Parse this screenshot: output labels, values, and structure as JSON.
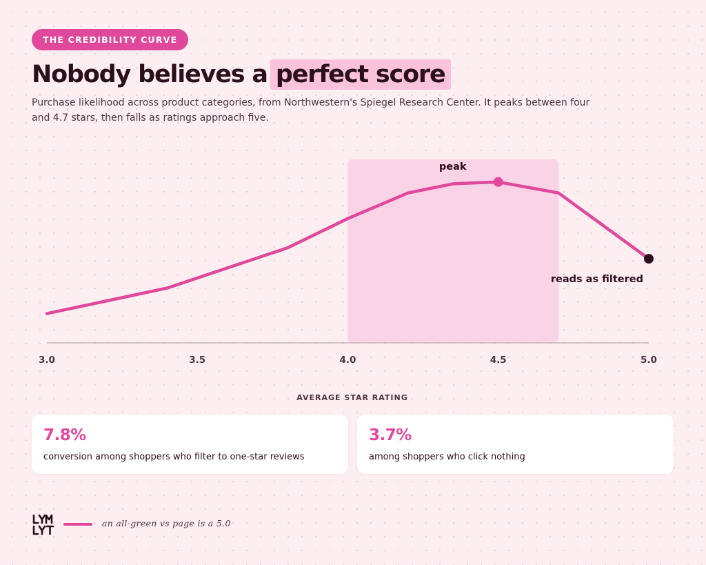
{
  "header": {
    "pill": "THE CREDIBILITY CURVE",
    "title_main": "Nobody believes a",
    "title_highlight": "perfect score",
    "subtitle": "Purchase likelihood across product categories, from Northwestern's Spiegel Research Center. It peaks between four and 4.7 stars, then falls as ratings approach five."
  },
  "colors": {
    "accent": "#e0489c",
    "band": "#fbd3e6",
    "axis": "#c7b3bc",
    "ink": "#2a0f1c",
    "end_point": "#2a0f1c"
  },
  "chart_data": {
    "type": "line",
    "title": "Nobody believes a perfect score",
    "xlabel": "AVERAGE STAR RATING",
    "ylabel": "",
    "xlim": [
      3.0,
      5.0
    ],
    "ylim": [
      0,
      100
    ],
    "x_ticks": [
      "3.0",
      "3.5",
      "4.0",
      "4.5",
      "5.0"
    ],
    "y_axis_visible": false,
    "grid": false,
    "series": [
      {
        "name": "",
        "x": [
          3.0,
          3.4,
          3.8,
          4.0,
          4.2,
          4.35,
          4.5,
          4.7,
          5.0
        ],
        "y": [
          16,
          30,
          52,
          68,
          82,
          87,
          88,
          82,
          46
        ]
      }
    ],
    "highlight_band": {
      "x_start": 4.0,
      "x_end": 4.7
    },
    "annotations": [
      {
        "label": "peak",
        "x": 4.5,
        "y": 88
      },
      {
        "label": "reads as filtered",
        "x": 5.0,
        "y": 46
      }
    ]
  },
  "stats": [
    {
      "value": "7.8%",
      "label": "conversion among shoppers who filter to one-star reviews"
    },
    {
      "value": "3.7%",
      "label": "among shoppers who click nothing"
    }
  ],
  "footer": {
    "logo_text": "LYMLYT",
    "note": "an all-green vs page is a 5.0"
  }
}
